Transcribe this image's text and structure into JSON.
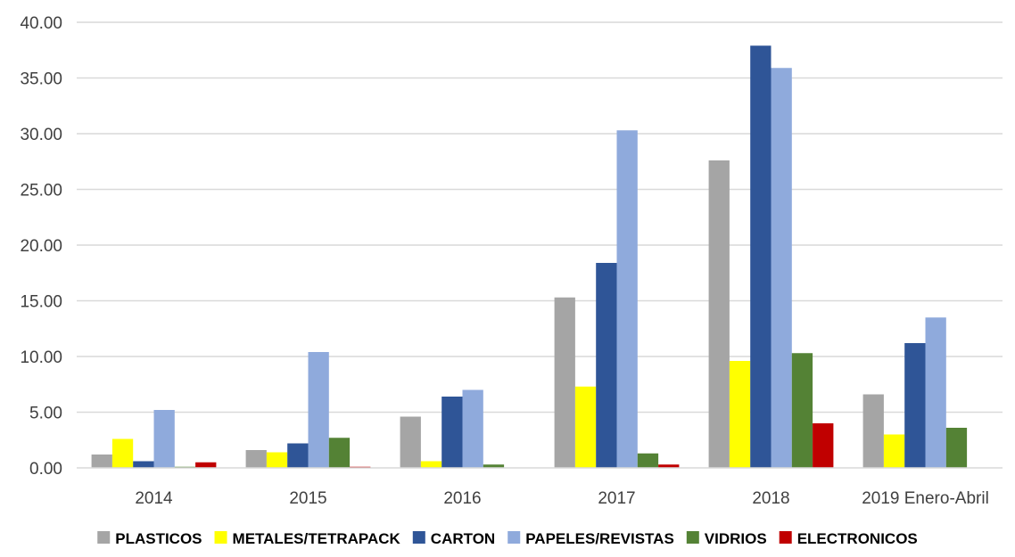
{
  "chart_data": {
    "type": "bar",
    "title": "",
    "xlabel": "",
    "ylabel": "",
    "ylim": [
      0,
      40
    ],
    "yticks": [
      "0.00",
      "5.00",
      "10.00",
      "15.00",
      "20.00",
      "25.00",
      "30.00",
      "35.00",
      "40.00"
    ],
    "grid": true,
    "legend_position": "bottom",
    "categories": [
      "2014",
      "2015",
      "2016",
      "2017",
      "2018",
      "2019 Enero-Abril"
    ],
    "series": [
      {
        "name": "PLASTICOS",
        "color": "#a5a5a5",
        "values": [
          1.2,
          1.6,
          4.6,
          15.3,
          27.6,
          6.6
        ]
      },
      {
        "name": "METALES/TETRAPACK",
        "color": "#ffff00",
        "values": [
          2.6,
          1.4,
          0.6,
          7.3,
          9.6,
          3.0
        ]
      },
      {
        "name": "CARTON",
        "color": "#2f5597",
        "values": [
          0.6,
          2.2,
          6.4,
          18.4,
          37.9,
          11.2
        ]
      },
      {
        "name": "PAPELES/REVISTAS",
        "color": "#8faadc",
        "values": [
          5.2,
          10.4,
          7.0,
          30.3,
          35.9,
          13.5
        ]
      },
      {
        "name": "VIDRIOS",
        "color": "#548235",
        "values": [
          0.1,
          2.7,
          0.3,
          1.3,
          10.3,
          3.6
        ]
      },
      {
        "name": "ELECTRONICOS",
        "color": "#c00000",
        "values": [
          0.5,
          0.1,
          0.0,
          0.3,
          4.0,
          0.0
        ]
      }
    ]
  }
}
